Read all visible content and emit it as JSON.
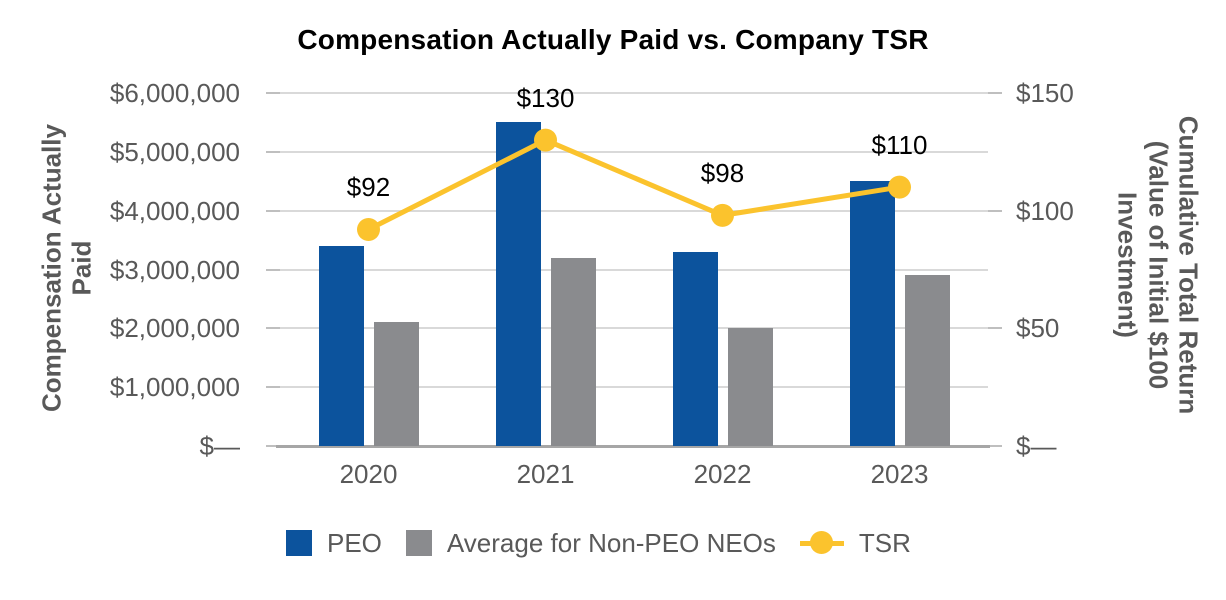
{
  "chart_data": {
    "type": "combo-bar-line",
    "title": "Compensation Actually Paid vs. Company TSR",
    "categories": [
      "2020",
      "2021",
      "2022",
      "2023"
    ],
    "series": [
      {
        "name": "PEO",
        "type": "bar",
        "axis": "left",
        "color": "#0C539D",
        "values": [
          3400000,
          5500000,
          3300000,
          4500000
        ]
      },
      {
        "name": "Average for Non-PEO NEOs",
        "type": "bar",
        "axis": "left",
        "color": "#8A8B8E",
        "values": [
          2100000,
          3200000,
          2000000,
          2900000
        ]
      },
      {
        "name": "TSR",
        "type": "line",
        "axis": "right",
        "color": "#FBC32D",
        "values": [
          92,
          130,
          98,
          110
        ],
        "point_labels": [
          "$92",
          "$130",
          "$98",
          "$110"
        ]
      }
    ],
    "left_axis": {
      "title_lines": [
        "Compensation Actually",
        "Paid"
      ],
      "tick_labels": [
        "$6,000,000",
        "$5,000,000",
        "$4,000,000",
        "$3,000,000",
        "$2,000,000",
        "$1,000,000",
        "$—"
      ],
      "min": 0,
      "max": 6000000
    },
    "right_axis": {
      "title_lines": [
        "Cumulative Total Return",
        "(Value of Initial $100",
        "Investment)"
      ],
      "tick_labels": [
        "$150",
        "$100",
        "$50",
        "$—"
      ],
      "min": 0,
      "max": 150
    },
    "legend_position": "bottom",
    "grid": true,
    "colors": {
      "gridline": "#D9D9D9",
      "axis_line": "#A6A6A6",
      "tick": "#BFBFBF",
      "label_text": "#595959",
      "data_label_text": "#000000",
      "title_text": "#000000"
    }
  }
}
